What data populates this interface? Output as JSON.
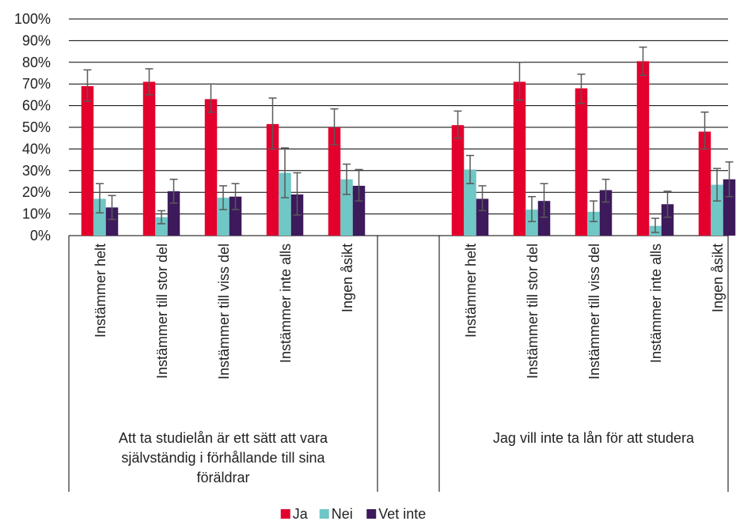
{
  "chart_data": {
    "type": "bar",
    "ylim": [
      0,
      100
    ],
    "yticks": [
      "0%",
      "10%",
      "20%",
      "30%",
      "40%",
      "50%",
      "60%",
      "70%",
      "80%",
      "90%",
      "100%"
    ],
    "grid": true,
    "legend_position": "bottom",
    "groups": [
      {
        "label": "Att ta studielån är ett sätt att vara självständig i förhållande till sina föräldrar",
        "label_lines": [
          "Att ta studielån är ett sätt att vara",
          "självständig i förhållande till sina",
          "föräldrar"
        ],
        "categories": [
          "Instämmer helt",
          "Instämmer till stor del",
          "Instämmer till viss del",
          "Instämmer inte alls",
          "Ingen åsikt"
        ]
      },
      {
        "label": "Jag vill inte ta lån för att studera",
        "label_lines": [
          "Jag vill inte ta lån för att studera"
        ],
        "categories": [
          "Instämmer helt",
          "Instämmer till stor del",
          "Instämmer till viss del",
          "Instämmer inte alls",
          "Ingen åsikt"
        ]
      }
    ],
    "series": [
      {
        "name": "Ja",
        "color": "#E3002D",
        "values": [
          69,
          71,
          63,
          51.5,
          50,
          51,
          71,
          68,
          80.5,
          48
        ],
        "err_low": [
          62,
          65,
          57,
          40,
          42,
          45,
          62.5,
          61,
          74,
          40
        ],
        "err_high": [
          76.5,
          77,
          70,
          63.5,
          58.5,
          57.5,
          80,
          74.5,
          87,
          57
        ]
      },
      {
        "name": "Nei",
        "color": "#6FC7C6",
        "values": [
          17,
          8.5,
          17.5,
          29,
          26,
          30.5,
          12,
          11,
          4.5,
          23.5
        ],
        "err_low": [
          10.5,
          5.5,
          12,
          17.5,
          19,
          24,
          6.5,
          6.5,
          1.5,
          16
        ],
        "err_high": [
          24,
          11.5,
          23,
          40.5,
          33,
          37,
          18,
          16,
          8,
          31
        ]
      },
      {
        "name": "Vet inte",
        "color": "#3C1A5B",
        "values": [
          13,
          20.5,
          18,
          19,
          23,
          17,
          16,
          21,
          14.5,
          26
        ],
        "err_low": [
          7.5,
          15,
          12,
          9.5,
          16,
          11.5,
          8.5,
          15.5,
          8.5,
          18
        ],
        "err_high": [
          18.5,
          26,
          24,
          29,
          30.5,
          23,
          24,
          26,
          20.5,
          34
        ]
      }
    ]
  }
}
